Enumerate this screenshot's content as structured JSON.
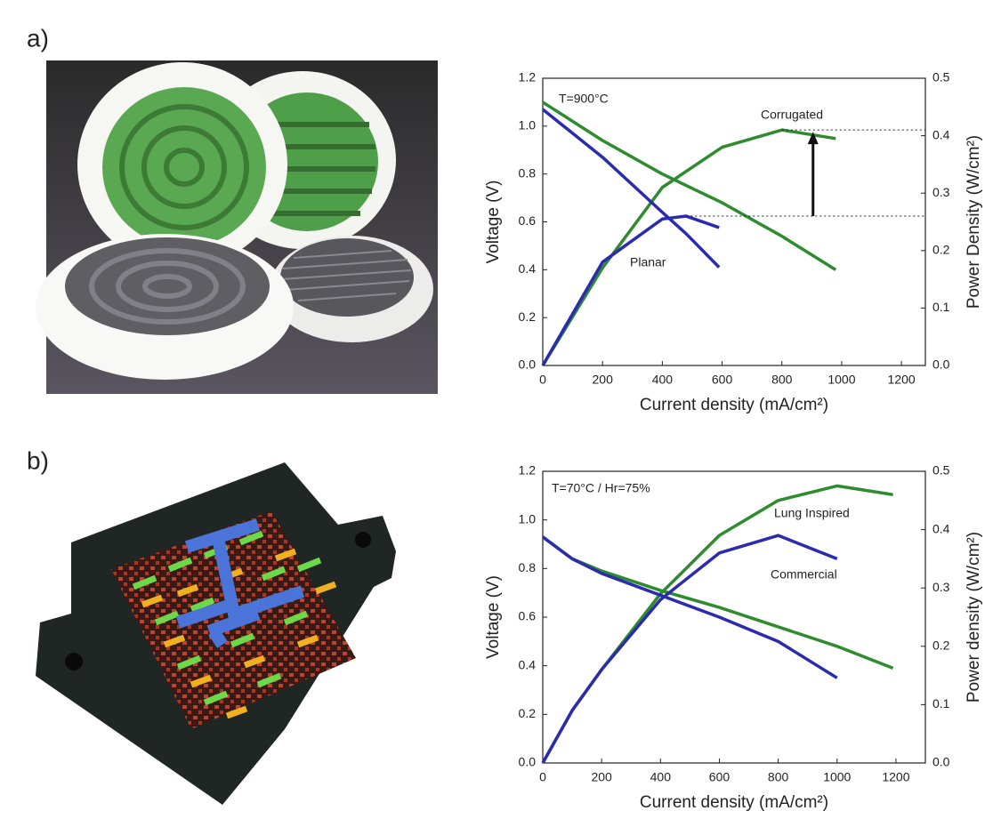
{
  "chart_data": [
    {
      "type": "line",
      "panel": "a)",
      "annotation": "T=900°C",
      "x_label": "Current density (mA/cm²)",
      "y_label": "Voltage (V)",
      "y2_label": "Power Density (W/cm²)",
      "xlim": [
        0,
        1280
      ],
      "xticks": [
        0,
        200,
        400,
        600,
        800,
        1000,
        1200
      ],
      "ylim": [
        0,
        1.2
      ],
      "yticks": [
        {
          "value": 0,
          "label": "0.0"
        },
        0.2,
        0.4,
        0.6,
        0.8,
        {
          "value": 1,
          "label": "1.0"
        },
        1.2
      ],
      "y2lim": [
        0,
        0.5
      ],
      "y2ticks": [
        {
          "value": 0,
          "label": "0.0"
        },
        0.1,
        0.2,
        0.3,
        0.4,
        0.5
      ],
      "peak_comparison": true,
      "series": [
        {
          "name": "Corrugated",
          "color": "#2e8b2e",
          "x": [
            0,
            200,
            400,
            600,
            800,
            980
          ],
          "values": [
            1.1,
            0.94,
            0.8,
            0.68,
            0.54,
            0.4
          ],
          "y2_values": [
            0,
            0.17,
            0.31,
            0.38,
            0.41,
            0.395
          ]
        },
        {
          "name": "Planar",
          "color": "#2b2bb0",
          "x": [
            0,
            200,
            400,
            480,
            590
          ],
          "values": [
            1.07,
            0.87,
            0.64,
            0.55,
            0.41
          ],
          "y2_values": [
            0,
            0.18,
            0.255,
            0.26,
            0.24
          ]
        }
      ]
    },
    {
      "type": "line",
      "panel": "b)",
      "annotation": "T=70°C / Hr=75%",
      "x_label": "Current density (mA/cm²)",
      "y_label": "Voltage (V)",
      "y2_label": "Power density (W/cm²)",
      "xlim": [
        0,
        1300
      ],
      "xticks": [
        0,
        200,
        400,
        600,
        800,
        1000,
        1200
      ],
      "ylim": [
        0,
        1.2
      ],
      "yticks": [
        {
          "value": 0,
          "label": "0.0"
        },
        0.2,
        0.4,
        0.6,
        0.8,
        {
          "value": 1,
          "label": "1.0"
        },
        1.2
      ],
      "y2lim": [
        0,
        0.5
      ],
      "y2ticks": [
        {
          "value": 0,
          "label": "0.0"
        },
        0.1,
        0.2,
        0.3,
        0.4,
        0.5
      ],
      "series": [
        {
          "name": "Lung Inspired",
          "color": "#2e8b2e",
          "x": [
            0,
            100,
            200,
            400,
            600,
            800,
            1000,
            1190
          ],
          "values": [
            0.93,
            0.84,
            0.79,
            0.71,
            0.64,
            0.56,
            0.48,
            0.39
          ],
          "y2_values": [
            0,
            0.09,
            0.16,
            0.29,
            0.39,
            0.45,
            0.475,
            0.46
          ]
        },
        {
          "name": "Commercial",
          "color": "#2b2bb0",
          "x": [
            0,
            100,
            200,
            400,
            600,
            800,
            1000
          ],
          "values": [
            0.93,
            0.84,
            0.78,
            0.69,
            0.6,
            0.5,
            0.35
          ],
          "y2_values": [
            0,
            0.09,
            0.16,
            0.28,
            0.36,
            0.39,
            0.35
          ]
        }
      ]
    }
  ]
}
